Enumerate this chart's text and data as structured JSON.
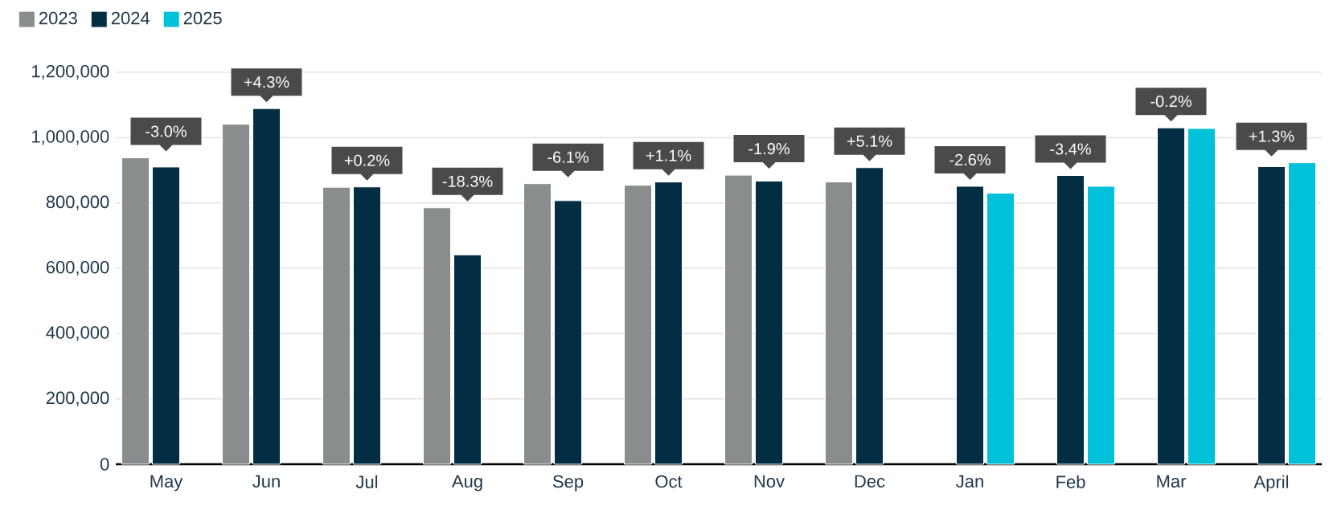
{
  "chart_data": {
    "type": "bar",
    "categories": [
      "May",
      "Jun",
      "Jul",
      "Aug",
      "Sep",
      "Oct",
      "Nov",
      "Dec",
      "Jan",
      "Feb",
      "Mar",
      "April"
    ],
    "series": [
      {
        "name": "2023",
        "color": "#898d8d",
        "values": [
          938000,
          1041000,
          848000,
          785000,
          859000,
          854000,
          885000,
          864000,
          null,
          null,
          null,
          null
        ]
      },
      {
        "name": "2024",
        "color": "#032d42",
        "values": [
          910000,
          1089000,
          849000,
          641000,
          807000,
          864000,
          867000,
          908000,
          851000,
          884000,
          1030000,
          911000
        ]
      },
      {
        "name": "2025",
        "color": "#00c1da",
        "values": [
          null,
          null,
          null,
          null,
          null,
          null,
          null,
          null,
          830000,
          851000,
          1028000,
          923000
        ]
      }
    ],
    "ylim": [
      0,
      1200000
    ],
    "yticks": [
      0,
      {
        "value": 200000,
        "label": "200,000"
      },
      {
        "value": 400000,
        "label": "400,000"
      },
      {
        "value": 600000,
        "label": "600,000"
      },
      {
        "value": 800000,
        "label": "800,000"
      },
      {
        "value": 1000000,
        "label": "1,000,000"
      },
      {
        "value": 1200000,
        "label": "1,200,000"
      }
    ],
    "grid": "y",
    "legend": "top left",
    "annotations": [
      "-3.0%",
      "+4.3%",
      "+0.2%",
      "-18.3%",
      "-6.1%",
      "+1.1%",
      "-1.9%",
      "+5.1%",
      "-2.6%",
      "-3.4%",
      "-0.2%",
      "+1.3%"
    ]
  }
}
